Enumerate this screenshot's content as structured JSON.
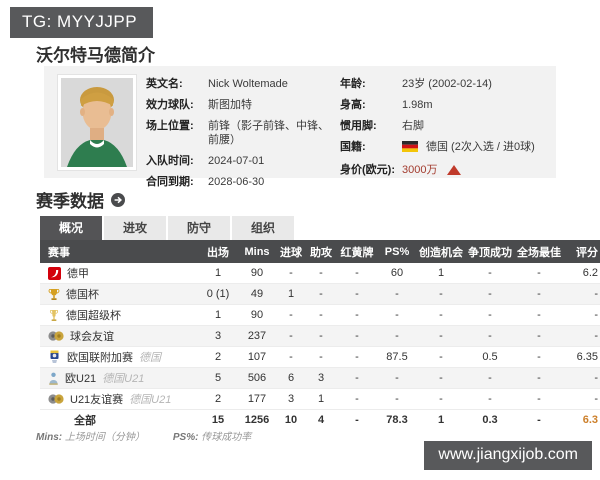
{
  "page": {
    "watermark_top": "TG: MYYJJPP",
    "watermark_bottom": "www.jiangxijob.com",
    "title": "沃尔特马德简介"
  },
  "profile": {
    "left": [
      {
        "label": "英文名:",
        "value": "Nick Woltemade"
      },
      {
        "label": "效力球队:",
        "value": "斯图加特"
      },
      {
        "label": "场上位置:",
        "value": "前锋（影子前锋、中锋、前腰）"
      },
      {
        "label": "入队时间:",
        "value": "2024-07-01"
      },
      {
        "label": "合同到期:",
        "value": "2028-06-30"
      }
    ],
    "right": [
      {
        "label": "年龄:",
        "value": "23岁 (2002-02-14)"
      },
      {
        "label": "身高:",
        "value": "1.98m"
      },
      {
        "label": "惯用脚:",
        "value": "右脚"
      },
      {
        "label": "国籍:",
        "value": "德国 (2次入选 / 进0球)",
        "icon": "germany-flag-icon"
      },
      {
        "label": "身价(欧元):",
        "value": "3000万",
        "trend": "up"
      }
    ]
  },
  "season": {
    "title": "赛季数据",
    "tabs": [
      {
        "id": "overview",
        "label": "概况",
        "active": true
      },
      {
        "id": "attack",
        "label": "进攻",
        "active": false
      },
      {
        "id": "defense",
        "label": "防守",
        "active": false
      },
      {
        "id": "organization",
        "label": "组织",
        "active": false
      }
    ],
    "table": {
      "headers": [
        "赛事",
        "出场",
        "Mins",
        "进球",
        "助攻",
        "红黄牌",
        "PS%",
        "创造机会",
        "争顶成功",
        "全场最佳",
        "评分"
      ],
      "rows": [
        {
          "competition": "德甲",
          "icon": "bundesliga-icon",
          "note": "",
          "cells": [
            "1",
            "90",
            "-",
            "-",
            "-",
            "60",
            "1",
            "-",
            "-",
            "6.2"
          ]
        },
        {
          "competition": "德国杯",
          "icon": "dfb-pokal-icon",
          "note": "",
          "cells": [
            "0 (1)",
            "49",
            "1",
            "-",
            "-",
            "-",
            "-",
            "-",
            "-",
            "-"
          ]
        },
        {
          "competition": "德国超级杯",
          "icon": "supercup-icon",
          "note": "",
          "cells": [
            "1",
            "90",
            "-",
            "-",
            "-",
            "-",
            "-",
            "-",
            "-",
            "-"
          ]
        },
        {
          "competition": "球会友谊",
          "icon": "friendly-balls-icon",
          "note": "",
          "cells": [
            "3",
            "237",
            "-",
            "-",
            "-",
            "-",
            "-",
            "-",
            "-",
            "-"
          ]
        },
        {
          "competition": "欧国联附加赛",
          "icon": "nations-league-icon",
          "note": "德国",
          "cells": [
            "2",
            "107",
            "-",
            "-",
            "-",
            "87.5",
            "-",
            "0.5",
            "-",
            "6.35"
          ]
        },
        {
          "competition": "欧U21",
          "icon": "u21-euro-icon",
          "note": "德国U21",
          "cells": [
            "5",
            "506",
            "6",
            "3",
            "-",
            "-",
            "-",
            "-",
            "-",
            "-"
          ]
        },
        {
          "competition": "U21友谊赛",
          "icon": "friendly-balls-icon",
          "note": "德国U21",
          "cells": [
            "2",
            "177",
            "3",
            "1",
            "-",
            "-",
            "-",
            "-",
            "-",
            "-"
          ]
        }
      ],
      "total": {
        "competition": "全部",
        "cells": [
          "15",
          "1256",
          "10",
          "4",
          "-",
          "78.3",
          "1",
          "0.3",
          "-",
          "6.3"
        ]
      }
    },
    "footnotes": [
      {
        "abbr": "Mins:",
        "desc": "上场时间（分钟）"
      },
      {
        "abbr": "PS%:",
        "desc": "传球成功率"
      }
    ]
  },
  "colors": {
    "dark_bar": "#4a4b4d",
    "badge": "#58595b",
    "rating_orange": "#cc7f2a",
    "money_red": "#a33c2f",
    "trend_red": "#c03a2b",
    "card_bg": "#f2f2f2"
  }
}
